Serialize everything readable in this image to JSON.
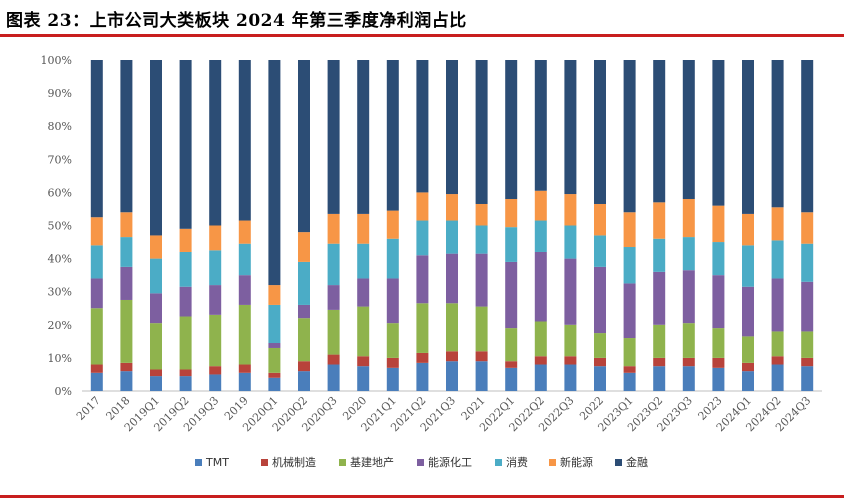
{
  "title": "图表 23：上市公司大类板块 2024 年第三季度净利润占比",
  "chart_data": {
    "type": "bar",
    "stacked": true,
    "title": "图表 23：上市公司大类板块 2024 年第三季度净利润占比",
    "xlabel": "",
    "ylabel": "",
    "ylim": [
      0,
      100
    ],
    "y_ticks": [
      "0%",
      "10%",
      "20%",
      "30%",
      "40%",
      "50%",
      "60%",
      "70%",
      "80%",
      "90%",
      "100%"
    ],
    "legend_position": "bottom",
    "categories": [
      "2017",
      "2018",
      "2019Q1",
      "2019Q2",
      "2019Q3",
      "2019",
      "2020Q1",
      "2020Q2",
      "2020Q3",
      "2020",
      "2021Q1",
      "2021Q2",
      "2021Q3",
      "2021",
      "2022Q1",
      "2022Q2",
      "2022Q3",
      "2022",
      "2023Q1",
      "2023Q2",
      "2023Q3",
      "2023",
      "2024Q1",
      "2024Q2",
      "2024Q3"
    ],
    "series": [
      {
        "name": "TMT",
        "color": "#4a7ebb",
        "values": [
          5.5,
          6,
          4.5,
          4.5,
          5,
          5.5,
          4,
          6,
          8,
          7.5,
          7,
          8.5,
          9,
          9,
          7,
          8,
          8,
          7.5,
          5.5,
          7.5,
          7.5,
          7,
          6,
          8,
          7.5
        ]
      },
      {
        "name": "机械制造",
        "color": "#b8433b",
        "values": [
          2.5,
          2.5,
          2,
          2,
          2.5,
          2.5,
          1.5,
          3,
          3,
          3,
          3,
          3,
          3,
          3,
          2,
          2.5,
          2.5,
          2.5,
          2,
          2.5,
          2.5,
          3,
          2.5,
          2.5,
          2.5
        ]
      },
      {
        "name": "基建地产",
        "color": "#8fb34d",
        "values": [
          17,
          19,
          14,
          16,
          15.5,
          18,
          7.5,
          13,
          13.5,
          15,
          10.5,
          15,
          14.5,
          13.5,
          10,
          10.5,
          9.5,
          7.5,
          8.5,
          10,
          10.5,
          9,
          8,
          7.5,
          8
        ]
      },
      {
        "name": "能源化工",
        "color": "#7d5fa0",
        "values": [
          9,
          10,
          9,
          9,
          9,
          9,
          1.5,
          4,
          7.5,
          8.5,
          13.5,
          14.5,
          15,
          16,
          20,
          21,
          20,
          20,
          16.5,
          16,
          16,
          16,
          15,
          16,
          15
        ]
      },
      {
        "name": "消费",
        "color": "#4bacc6",
        "values": [
          10,
          9,
          10.5,
          10.5,
          10.5,
          9.5,
          11.5,
          13,
          12.5,
          10.5,
          12,
          10.5,
          10,
          8.5,
          10.5,
          9.5,
          10,
          9.5,
          11,
          10,
          10,
          10,
          12.5,
          11.5,
          11.5
        ]
      },
      {
        "name": "新能源",
        "color": "#f79646",
        "values": [
          8.5,
          7.5,
          7,
          7,
          7.5,
          7,
          6,
          9,
          9,
          9,
          8.5,
          8.5,
          8,
          6.5,
          8.5,
          9,
          9.5,
          9.5,
          10.5,
          11,
          11.5,
          11,
          9.5,
          10,
          9.5
        ]
      },
      {
        "name": "金融",
        "color": "#2c4d75",
        "values": [
          47.5,
          46,
          53,
          51,
          50,
          48.5,
          68,
          52,
          46.5,
          46.5,
          45.5,
          40,
          40.5,
          43.5,
          42,
          39.5,
          40.5,
          43.5,
          46,
          43,
          42,
          44,
          46.5,
          44.5,
          46
        ]
      }
    ]
  }
}
